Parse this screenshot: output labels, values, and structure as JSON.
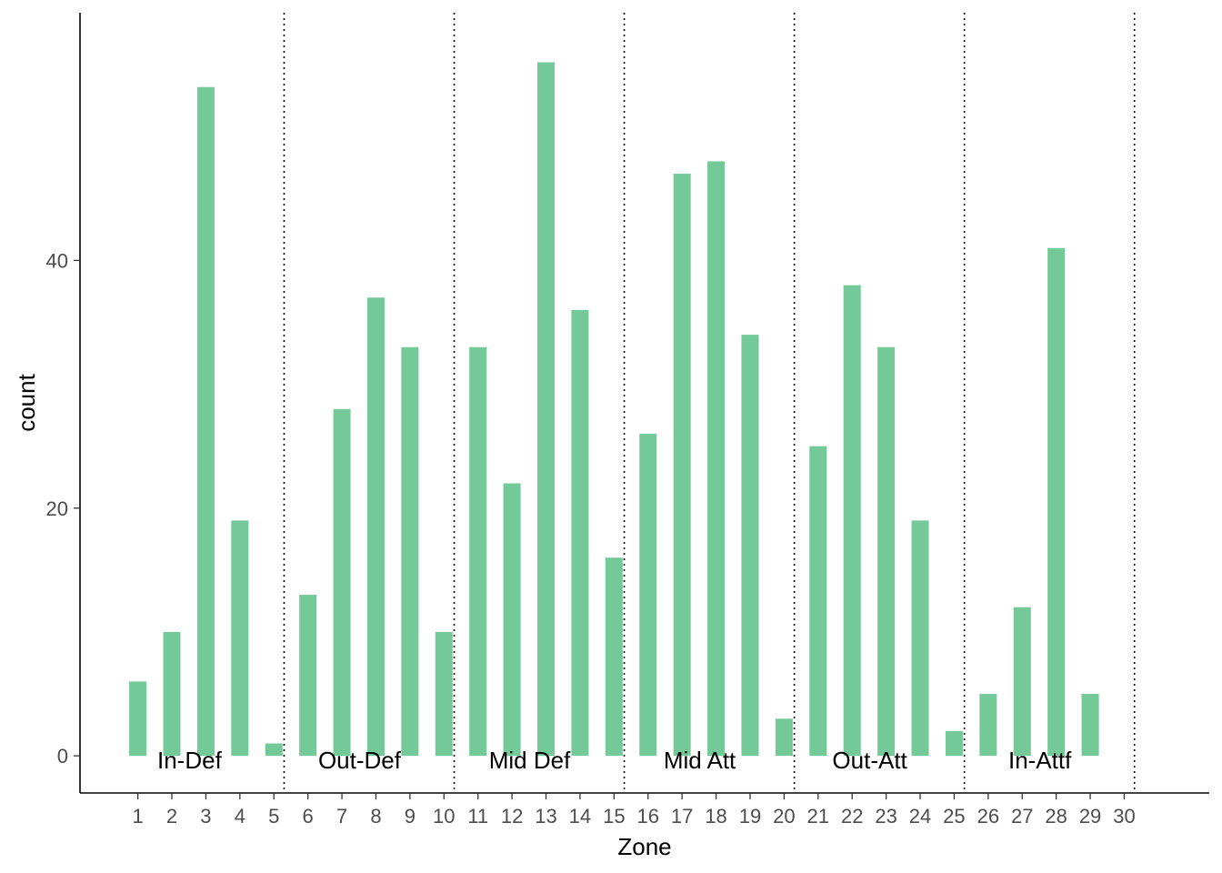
{
  "chart_data": {
    "type": "bar",
    "title": "",
    "xlabel": "Zone",
    "ylabel": "count",
    "categories": [
      "1",
      "2",
      "3",
      "4",
      "5",
      "6",
      "7",
      "8",
      "9",
      "10",
      "11",
      "12",
      "13",
      "14",
      "15",
      "16",
      "17",
      "18",
      "19",
      "20",
      "21",
      "22",
      "23",
      "24",
      "25",
      "26",
      "27",
      "28",
      "29",
      "30"
    ],
    "values": [
      6,
      10,
      54,
      19,
      1,
      13,
      28,
      37,
      33,
      10,
      33,
      22,
      56,
      36,
      16,
      26,
      47,
      48,
      34,
      3,
      25,
      38,
      33,
      19,
      2,
      5,
      12,
      41,
      5,
      null
    ],
    "ylim": [
      -3,
      60
    ],
    "yticks": [
      0,
      20,
      40
    ],
    "xlim": [
      -0.7,
      32.5
    ],
    "bar_color": "#73c997",
    "grid": false,
    "legend": "none",
    "zone_dividers": [
      5.3,
      10.3,
      15.3,
      20.3,
      25.3,
      30.3
    ],
    "zone_labels": [
      {
        "text": "In-Def",
        "x": 3
      },
      {
        "text": "Out-Def",
        "x": 8
      },
      {
        "text": "Mid Def",
        "x": 13
      },
      {
        "text": "Mid Att",
        "x": 18
      },
      {
        "text": "Out-Att",
        "x": 23
      },
      {
        "text": "In-Attf",
        "x": 28
      }
    ]
  }
}
